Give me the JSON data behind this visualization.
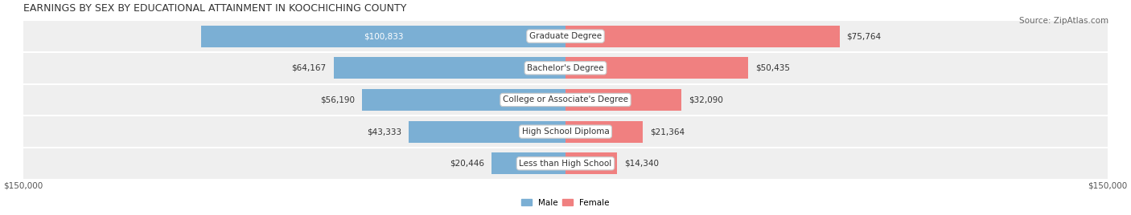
{
  "title": "EARNINGS BY SEX BY EDUCATIONAL ATTAINMENT IN KOOCHICHING COUNTY",
  "source": "Source: ZipAtlas.com",
  "categories": [
    "Less than High School",
    "High School Diploma",
    "College or Associate's Degree",
    "Bachelor's Degree",
    "Graduate Degree"
  ],
  "male_values": [
    20446,
    43333,
    56190,
    64167,
    100833
  ],
  "female_values": [
    14340,
    21364,
    32090,
    50435,
    75764
  ],
  "male_color": "#7bafd4",
  "female_color": "#f08080",
  "male_label_color": "#333333",
  "female_label_color": "#333333",
  "bar_bg_color": "#e8e8e8",
  "row_bg_colors": [
    "#f0f0f0",
    "#e8e8e8"
  ],
  "xlim": 150000,
  "tick_labels": [
    "$150,000",
    "$150,000"
  ],
  "title_fontsize": 9,
  "source_fontsize": 7.5,
  "label_fontsize": 7.5,
  "category_fontsize": 7.5
}
